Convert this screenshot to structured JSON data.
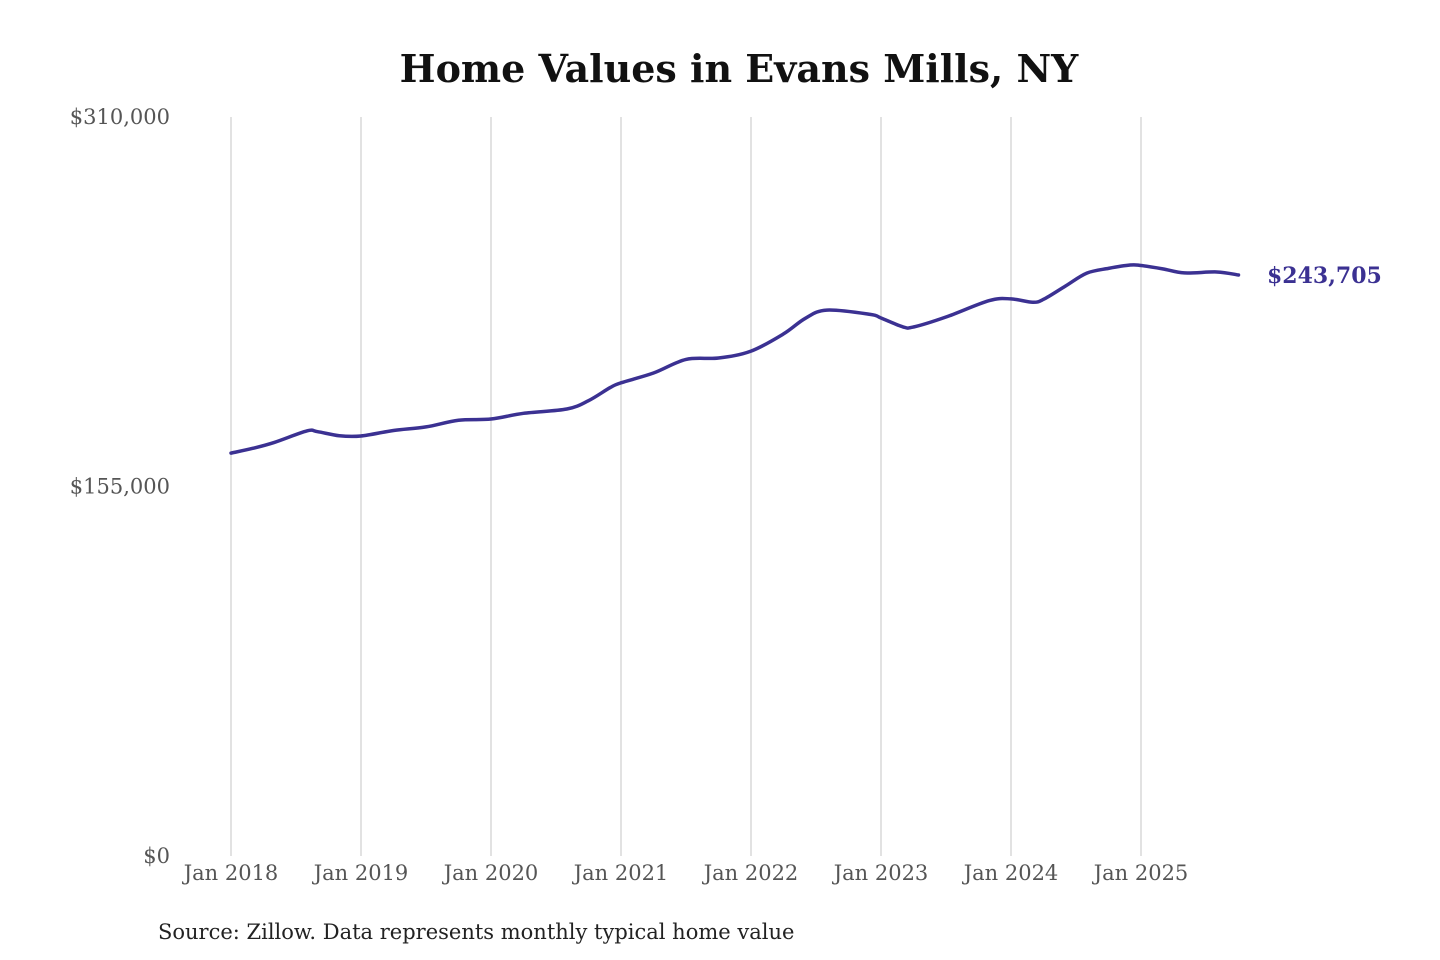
{
  "chart_data": {
    "type": "line",
    "title": "Home Values in Evans Mills, NY",
    "source": "Source: Zillow. Data represents monthly typical home value",
    "ylim": [
      0,
      310000
    ],
    "y_ticks": [
      0,
      155000,
      310000
    ],
    "y_tick_labels": [
      "$0",
      "$155,000",
      "$310,000"
    ],
    "x_ticks": [
      "2018-01",
      "2019-01",
      "2020-01",
      "2021-01",
      "2022-01",
      "2023-01",
      "2024-01",
      "2025-01"
    ],
    "x_tick_labels": [
      "Jan 2018",
      "Jan 2019",
      "Jan 2020",
      "Jan 2021",
      "Jan 2022",
      "Jan 2023",
      "Jan 2024",
      "Jan 2025"
    ],
    "grid": "vertical",
    "line_color": "#3b3192",
    "end_label": "$243,705",
    "x": [
      "2018-01",
      "2018-03",
      "2018-05",
      "2018-08",
      "2018-09",
      "2018-11",
      "2019-01",
      "2019-04",
      "2019-07",
      "2019-10",
      "2020-01",
      "2020-04",
      "2020-08",
      "2020-10",
      "2020-12",
      "2021-01",
      "2021-04",
      "2021-07",
      "2021-10",
      "2022-01",
      "2022-04",
      "2022-06",
      "2022-08",
      "2022-12",
      "2023-01",
      "2023-03",
      "2023-04",
      "2023-07",
      "2023-11",
      "2024-01",
      "2024-03",
      "2024-04",
      "2024-06",
      "2024-08",
      "2024-10",
      "2024-12",
      "2025-01",
      "2025-03",
      "2025-05",
      "2025-08",
      "2025-10"
    ],
    "values": [
      169000,
      171000,
      173500,
      178300,
      178000,
      176300,
      176200,
      178500,
      180000,
      182800,
      183300,
      185700,
      187500,
      191000,
      196500,
      198500,
      202600,
      208300,
      208900,
      211800,
      219000,
      225500,
      229000,
      227200,
      225700,
      222000,
      221900,
      226100,
      233000,
      233700,
      232300,
      233500,
      239000,
      244500,
      246500,
      247900,
      247700,
      246300,
      244600,
      245000,
      243705
    ]
  }
}
